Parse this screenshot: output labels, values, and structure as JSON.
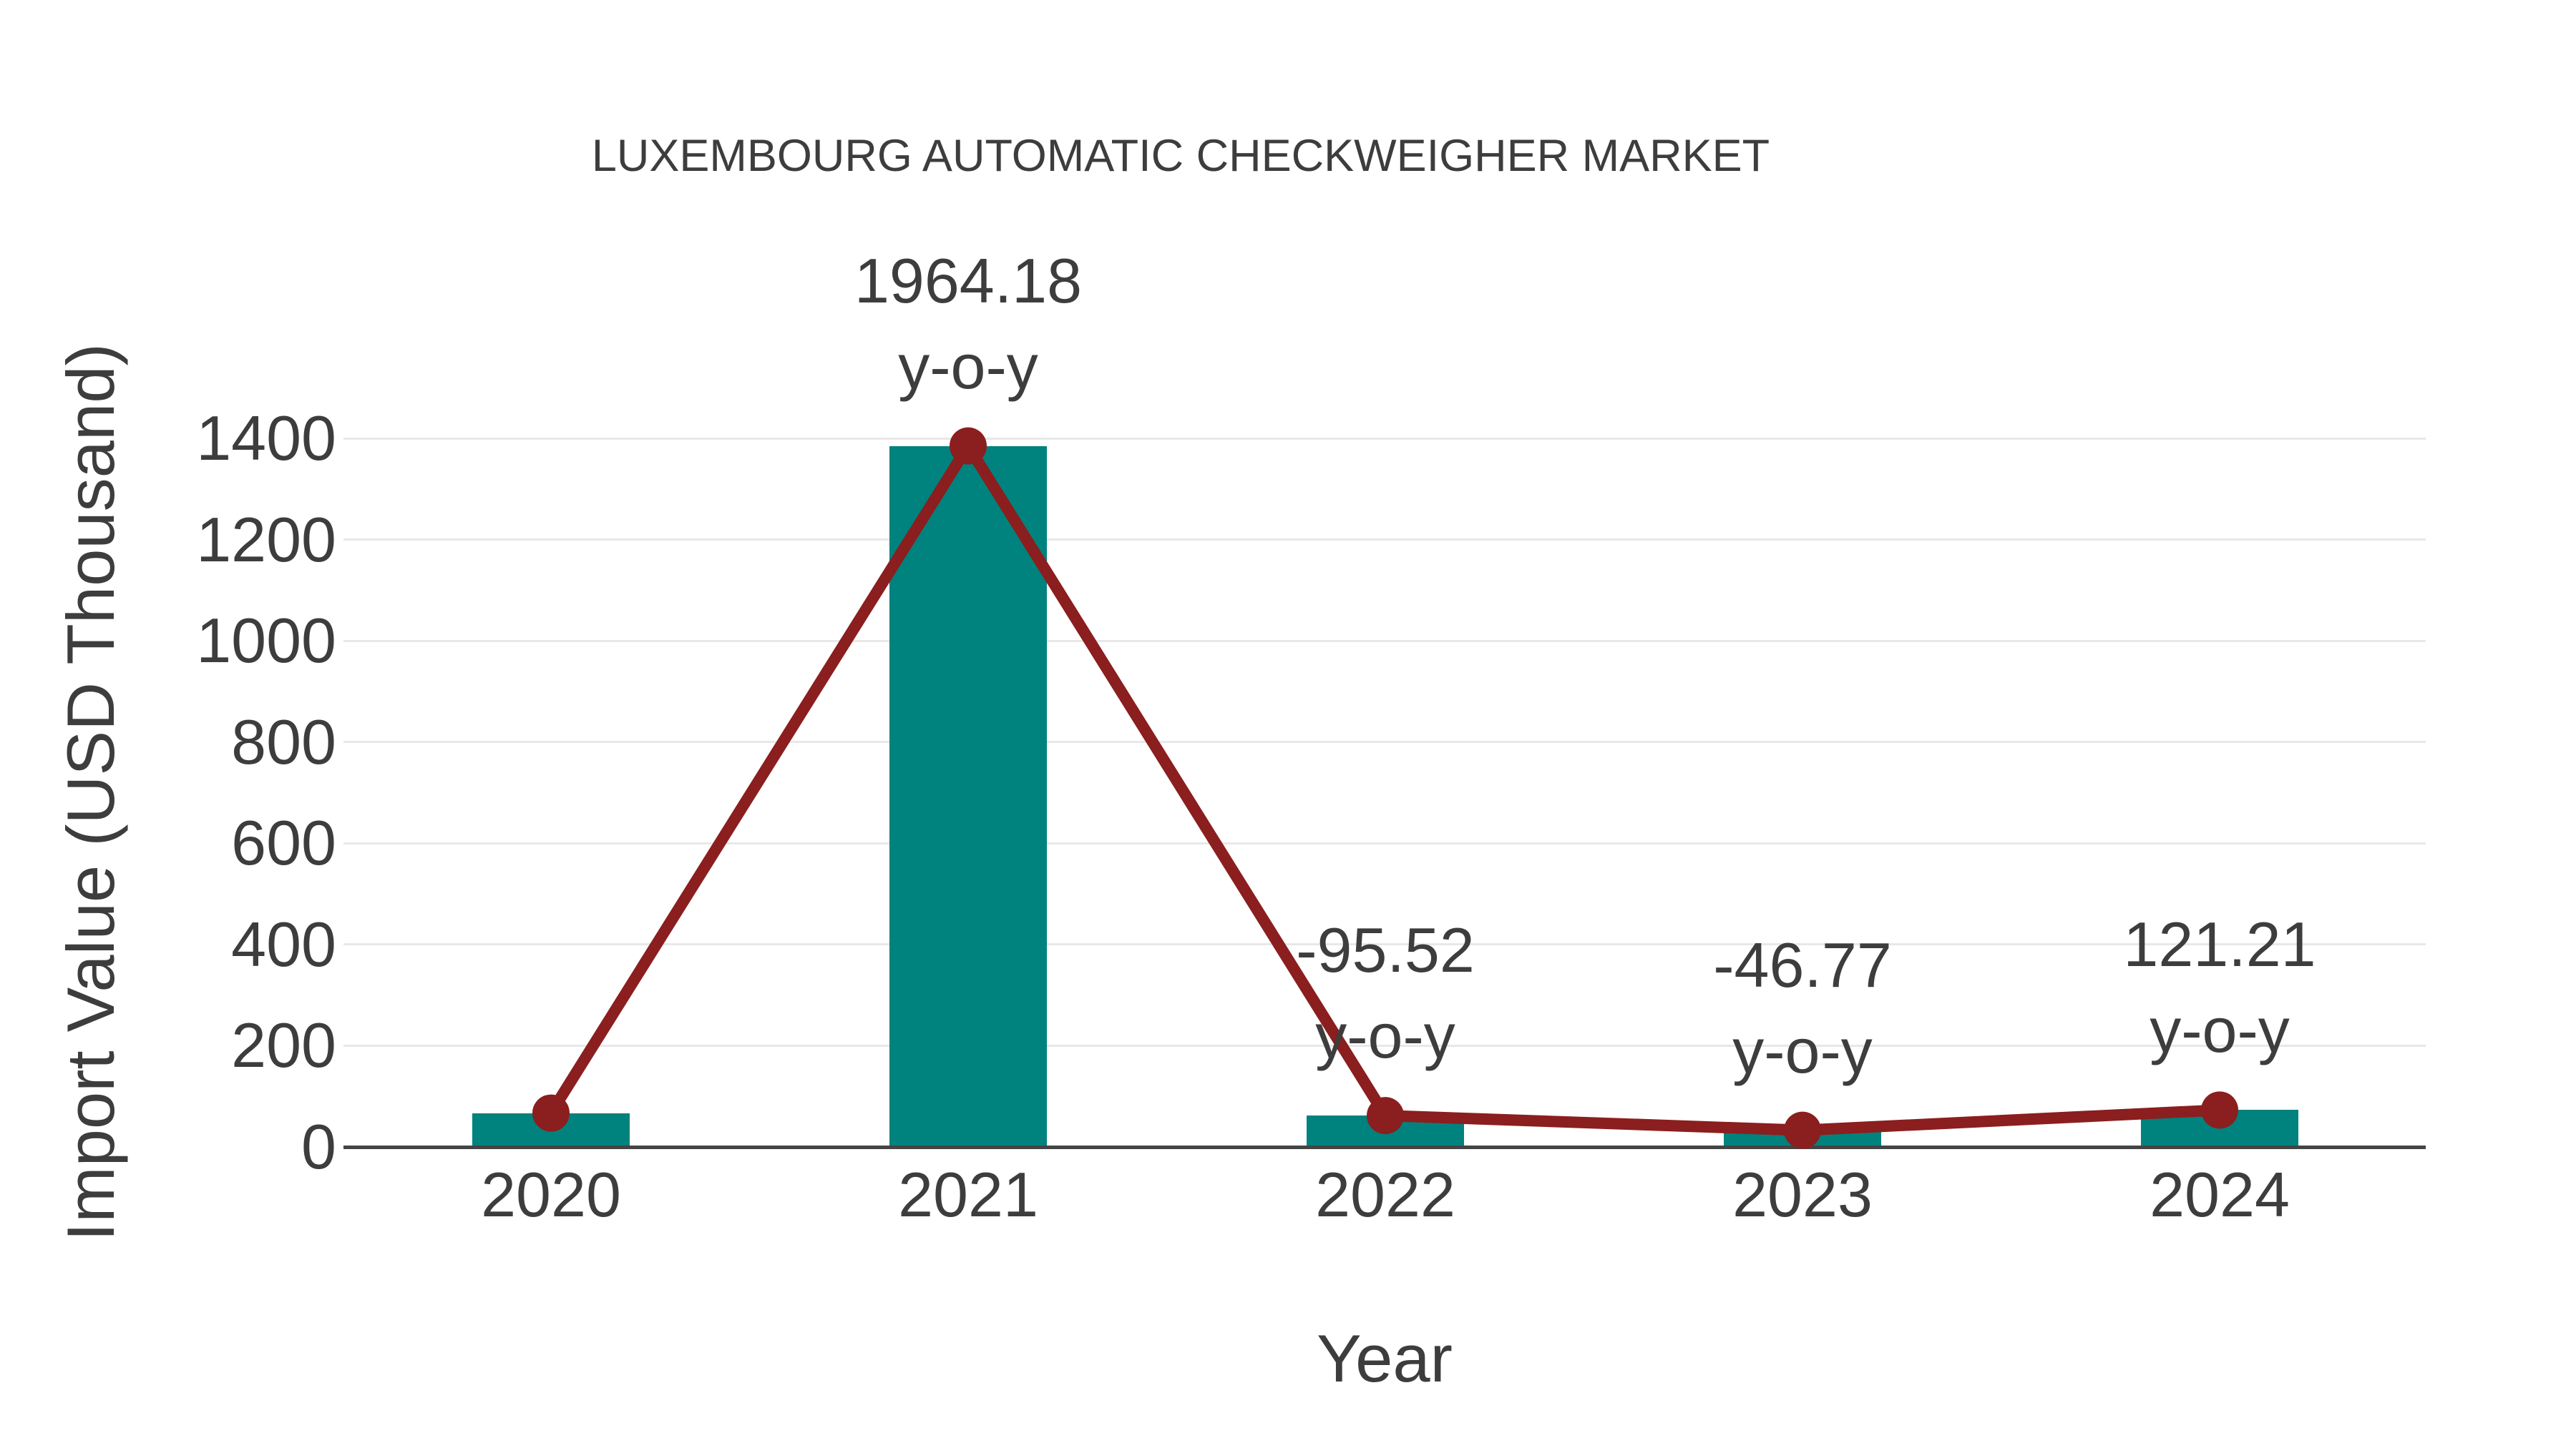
{
  "chart_data": {
    "type": "bar",
    "title": "LUXEMBOURG AUTOMATIC CHECKWEIGHER MARKET",
    "xlabel": "Year",
    "ylabel": "Import Value (USD Thousand)",
    "categories": [
      "2020",
      "2021",
      "2022",
      "2023",
      "2024"
    ],
    "series": [
      {
        "name": "Import Value",
        "type": "bar",
        "color": "#00827E",
        "values": [
          67,
          1385,
          62,
          33,
          73
        ]
      },
      {
        "name": "Import Value trend",
        "type": "line",
        "color": "#8B1E1E",
        "marker": "circle",
        "values": [
          67,
          1385,
          62,
          33,
          73
        ]
      }
    ],
    "annotations": [
      {
        "category": "2021",
        "line1": "1964.18",
        "line2": "y-o-y"
      },
      {
        "category": "2022",
        "line1": "-95.52",
        "line2": "y-o-y"
      },
      {
        "category": "2023",
        "line1": "-46.77",
        "line2": "y-o-y"
      },
      {
        "category": "2024",
        "line1": "121.21",
        "line2": "y-o-y"
      }
    ],
    "y_ticks": [
      0,
      200,
      400,
      600,
      800,
      1000,
      1200,
      1400
    ],
    "ylim": [
      0,
      1400
    ],
    "grid": true,
    "legend": false,
    "colors": {
      "bar": "#00827E",
      "line": "#8B1E1E",
      "text": "#3D3D3D",
      "grid": "#E8E8E8",
      "axis": "#444444",
      "background": "#FFFFFF"
    }
  }
}
